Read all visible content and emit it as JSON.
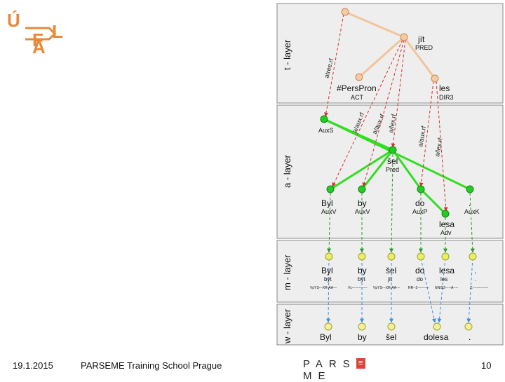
{
  "logo": {
    "line1": "Ú",
    "line2": "F",
    "line3": "A",
    "line4": "L"
  },
  "layers": {
    "t": "t - layer",
    "a": "a - layer",
    "m": "m - layer",
    "w": "w - layer"
  },
  "t_layer": {
    "nodes": [
      {
        "word": "jít",
        "func": "PRED"
      },
      {
        "word": "#PersPron",
        "func": "ACT"
      },
      {
        "word": "les",
        "func": "DIR3"
      }
    ]
  },
  "a_layer": {
    "nodes": [
      {
        "word": "",
        "func": "AuxS"
      },
      {
        "word": "šel",
        "func": "Pred"
      },
      {
        "word": "Byl",
        "func": "AuxV"
      },
      {
        "word": "by",
        "func": "AuxV"
      },
      {
        "word": "do",
        "func": "AuxP"
      },
      {
        "word": ".",
        "func": "AuxK"
      },
      {
        "word": "lesa",
        "func": "Adv"
      }
    ]
  },
  "refs": {
    "atree": "atree.rf",
    "aux1": "a/aux.rf",
    "aux2": "a/aux.rf",
    "lex1": "a/lex.rf",
    "aux3": "a/aux.rf",
    "lex2": "a/lex.rf"
  },
  "m_layer": {
    "tokens": [
      {
        "form": "Byl",
        "lemma": "být",
        "tag": "VpYS---XR-AA---"
      },
      {
        "form": "by",
        "lemma": "být",
        "tag": "Vc-------------"
      },
      {
        "form": "šel",
        "lemma": "jít",
        "tag": "VpYS---XR-AA---"
      },
      {
        "form": "do",
        "lemma": "do",
        "tag": "RR--2----------"
      },
      {
        "form": "lesa",
        "lemma": "les",
        "tag": "NNIS2-----A----"
      },
      {
        "form": ".",
        "lemma": ".",
        "tag": "Z:-------------"
      }
    ]
  },
  "w_layer": {
    "tokens": [
      "Byl",
      "by",
      "šel",
      "dolesa",
      "."
    ]
  },
  "footer": {
    "date": "19.1.2015",
    "title": "PARSEME Training School Prague",
    "brand_left": "PARS",
    "brand_e": "≡",
    "brand_right": "ME",
    "page": "10"
  },
  "colors": {
    "t_edge": "#f2c49c",
    "a_edge": "#33dd22",
    "ref_arrow": "#d92a2a",
    "m_arrow": "#2a9a2a",
    "w_arrow": "#3a8ee6",
    "node_t": "#f7c9a3",
    "node_a": "#22cc22",
    "node_m": "#e8f060",
    "panel_bg": "#eeeeee",
    "logo": "#e8893a"
  }
}
